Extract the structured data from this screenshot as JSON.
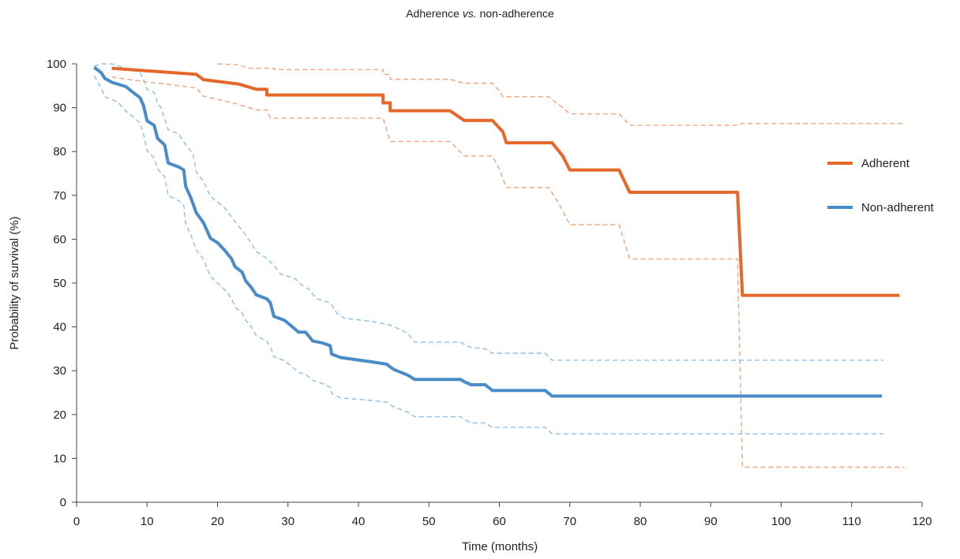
{
  "chart_data": {
    "type": "line",
    "title_main": "Adherence ",
    "title_em": "vs.",
    "title_rest": " non-adherence",
    "xlabel": "Time (months)",
    "ylabel": "Probability of survival (%)",
    "xlim": [
      0,
      120
    ],
    "ylim": [
      0,
      100
    ],
    "xticks": [
      0,
      10,
      20,
      30,
      40,
      50,
      60,
      70,
      80,
      90,
      100,
      110,
      120
    ],
    "yticks": [
      0,
      10,
      20,
      30,
      40,
      50,
      60,
      70,
      80,
      90,
      100
    ],
    "grid": false,
    "legend_position": "right",
    "series": [
      {
        "name": "Adherent",
        "color": "#e5672a",
        "style": "solid",
        "points": [
          [
            5,
            99
          ],
          [
            17,
            97.6
          ],
          [
            18,
            96.4
          ],
          [
            23,
            95.4
          ],
          [
            25.5,
            94.2
          ],
          [
            27,
            94.2
          ],
          [
            27,
            92.9
          ],
          [
            43.5,
            92.9
          ],
          [
            43.5,
            91.1
          ],
          [
            44.5,
            91.1
          ],
          [
            44.5,
            89.3
          ],
          [
            53,
            89.3
          ],
          [
            55,
            87.1
          ],
          [
            59,
            87.1
          ],
          [
            60.5,
            84.5
          ],
          [
            61,
            82
          ],
          [
            67.5,
            82
          ],
          [
            69,
            79
          ],
          [
            70,
            75.8
          ],
          [
            77,
            75.8
          ],
          [
            78.5,
            70.7
          ],
          [
            93.8,
            70.7
          ],
          [
            94.5,
            47.2
          ],
          [
            116.8,
            47.2
          ]
        ]
      },
      {
        "name": "Non-adherent",
        "color": "#4a8cc8",
        "style": "solid",
        "points": [
          [
            2.5,
            99.2
          ],
          [
            3.5,
            98
          ],
          [
            4,
            96.7
          ],
          [
            5,
            95.8
          ],
          [
            7,
            94.8
          ],
          [
            8,
            93.5
          ],
          [
            9,
            92.3
          ],
          [
            9.5,
            90.5
          ],
          [
            10,
            87
          ],
          [
            11,
            86
          ],
          [
            11.5,
            83
          ],
          [
            12.5,
            81.5
          ],
          [
            13,
            77.4
          ],
          [
            14.5,
            76.5
          ],
          [
            15.2,
            75.8
          ],
          [
            15.5,
            72
          ],
          [
            16.2,
            69.5
          ],
          [
            17,
            66
          ],
          [
            18,
            63.8
          ],
          [
            19,
            60.2
          ],
          [
            20,
            59.2
          ],
          [
            21,
            57.5
          ],
          [
            22,
            55.5
          ],
          [
            22.5,
            53.7
          ],
          [
            23.5,
            52.5
          ],
          [
            24,
            50.5
          ],
          [
            24.8,
            49
          ],
          [
            25.5,
            47.3
          ],
          [
            27,
            46.4
          ],
          [
            27.5,
            45.5
          ],
          [
            28,
            42.4
          ],
          [
            29.5,
            41.5
          ],
          [
            30.5,
            40.2
          ],
          [
            31.5,
            38.8
          ],
          [
            32.5,
            38.8
          ],
          [
            33.5,
            36.8
          ],
          [
            35,
            36.3
          ],
          [
            36,
            35.7
          ],
          [
            36.2,
            33.8
          ],
          [
            37.5,
            33
          ],
          [
            42,
            32
          ],
          [
            44,
            31.5
          ],
          [
            45,
            30.3
          ],
          [
            47,
            29
          ],
          [
            48,
            28
          ],
          [
            54.5,
            28
          ],
          [
            55,
            27.5
          ],
          [
            56,
            26.8
          ],
          [
            58,
            26.8
          ],
          [
            59,
            25.5
          ],
          [
            66.5,
            25.5
          ],
          [
            67.5,
            24.2
          ],
          [
            114.3,
            24.2
          ]
        ]
      },
      {
        "role": "ci-upper",
        "color": "#f0a47a",
        "style": "dashed",
        "points": [
          [
            20,
            100
          ],
          [
            23,
            99.8
          ],
          [
            24.5,
            99
          ],
          [
            28,
            99
          ],
          [
            28,
            98.7
          ],
          [
            43.5,
            98.7
          ],
          [
            43.5,
            97.6
          ],
          [
            44.5,
            97.6
          ],
          [
            44.5,
            96.5
          ],
          [
            53,
            96.5
          ],
          [
            55,
            95.6
          ],
          [
            59,
            95.6
          ],
          [
            60,
            93.8
          ],
          [
            60.5,
            92.5
          ],
          [
            67,
            92.5
          ],
          [
            69,
            90
          ],
          [
            70,
            88.6
          ],
          [
            77,
            88.6
          ],
          [
            78.5,
            86
          ],
          [
            93.8,
            86
          ],
          [
            94.5,
            86.4
          ],
          [
            117.5,
            86.4
          ]
        ]
      },
      {
        "role": "ci-lower",
        "color": "#f0a47a",
        "style": "dashed",
        "points": [
          [
            5,
            97
          ],
          [
            8,
            96.3
          ],
          [
            12,
            95.5
          ],
          [
            17,
            94.5
          ],
          [
            18,
            92.6
          ],
          [
            22,
            91.2
          ],
          [
            25.5,
            89.5
          ],
          [
            27,
            89.5
          ],
          [
            27.5,
            87.6
          ],
          [
            43.5,
            87.6
          ],
          [
            44.5,
            82.3
          ],
          [
            53,
            82.3
          ],
          [
            55,
            79
          ],
          [
            59,
            79
          ],
          [
            60,
            76
          ],
          [
            61,
            71.8
          ],
          [
            67,
            71.8
          ],
          [
            68.5,
            68
          ],
          [
            70,
            63.3
          ],
          [
            77,
            63.3
          ],
          [
            78.5,
            55.5
          ],
          [
            93.8,
            55.5
          ],
          [
            94.5,
            8
          ],
          [
            117.5,
            8
          ]
        ]
      },
      {
        "role": "ci-upper",
        "color": "#8dbfe8",
        "style": "dashed",
        "points": [
          [
            2.5,
            99.5
          ],
          [
            3.5,
            100
          ],
          [
            5,
            100
          ],
          [
            7,
            99
          ],
          [
            8,
            98.5
          ],
          [
            9,
            98
          ],
          [
            9.5,
            96.5
          ],
          [
            10,
            94.2
          ],
          [
            11,
            93.5
          ],
          [
            11.5,
            91
          ],
          [
            12,
            90
          ],
          [
            13,
            85
          ],
          [
            14.5,
            84
          ],
          [
            15.5,
            81.5
          ],
          [
            16.5,
            79.5
          ],
          [
            17,
            75.3
          ],
          [
            18,
            73.2
          ],
          [
            19,
            69.8
          ],
          [
            20,
            68.5
          ],
          [
            21,
            67.2
          ],
          [
            22,
            65
          ],
          [
            23,
            63
          ],
          [
            24,
            61
          ],
          [
            24.8,
            59
          ],
          [
            25.5,
            57.2
          ],
          [
            27,
            55.6
          ],
          [
            28,
            54
          ],
          [
            29,
            52
          ],
          [
            31,
            51
          ],
          [
            32,
            49.5
          ],
          [
            33,
            48.6
          ],
          [
            34,
            46.5
          ],
          [
            36,
            45.5
          ],
          [
            37,
            43
          ],
          [
            38,
            42
          ],
          [
            42,
            41.2
          ],
          [
            44,
            40.6
          ],
          [
            45,
            40.1
          ],
          [
            47,
            38.5
          ],
          [
            48,
            36.5
          ],
          [
            54.5,
            36.5
          ],
          [
            55,
            36
          ],
          [
            56,
            35.3
          ],
          [
            58,
            35
          ],
          [
            59,
            34
          ],
          [
            66.5,
            34
          ],
          [
            67.5,
            32.4
          ],
          [
            114.5,
            32.4
          ]
        ]
      },
      {
        "role": "ci-lower",
        "color": "#8dbfe8",
        "style": "dashed",
        "points": [
          [
            2.5,
            97.3
          ],
          [
            3.5,
            94.5
          ],
          [
            4,
            92.5
          ],
          [
            5,
            92
          ],
          [
            6,
            91
          ],
          [
            7,
            89.2
          ],
          [
            8,
            88
          ],
          [
            9,
            86.5
          ],
          [
            9.5,
            84
          ],
          [
            10,
            80.2
          ],
          [
            11,
            78.5
          ],
          [
            11.5,
            76
          ],
          [
            12.5,
            74.2
          ],
          [
            13,
            70
          ],
          [
            14.5,
            68.8
          ],
          [
            15.2,
            67.8
          ],
          [
            15.5,
            63.5
          ],
          [
            16.2,
            61
          ],
          [
            17,
            57.5
          ],
          [
            18,
            55.5
          ],
          [
            19,
            51.5
          ],
          [
            20,
            50
          ],
          [
            21,
            48.5
          ],
          [
            22,
            46.5
          ],
          [
            22.5,
            44.5
          ],
          [
            23.5,
            43.2
          ],
          [
            24,
            41.5
          ],
          [
            24.8,
            40
          ],
          [
            25.5,
            38
          ],
          [
            27,
            36.7
          ],
          [
            27.5,
            35.5
          ],
          [
            28,
            33.2
          ],
          [
            29.5,
            32.3
          ],
          [
            30.5,
            31
          ],
          [
            31.5,
            29.6
          ],
          [
            32.5,
            29.2
          ],
          [
            33.5,
            27.8
          ],
          [
            35,
            27
          ],
          [
            36,
            26.2
          ],
          [
            36.2,
            24.8
          ],
          [
            37.5,
            23.8
          ],
          [
            42,
            23.2
          ],
          [
            44,
            22.8
          ],
          [
            45,
            21.8
          ],
          [
            47,
            20.5
          ],
          [
            48,
            19.5
          ],
          [
            54.5,
            19.5
          ],
          [
            55,
            18.9
          ],
          [
            56,
            18.1
          ],
          [
            58,
            18.1
          ],
          [
            59,
            17.1
          ],
          [
            66.5,
            17.1
          ],
          [
            67.5,
            15.6
          ],
          [
            114.5,
            15.6
          ]
        ]
      }
    ]
  }
}
